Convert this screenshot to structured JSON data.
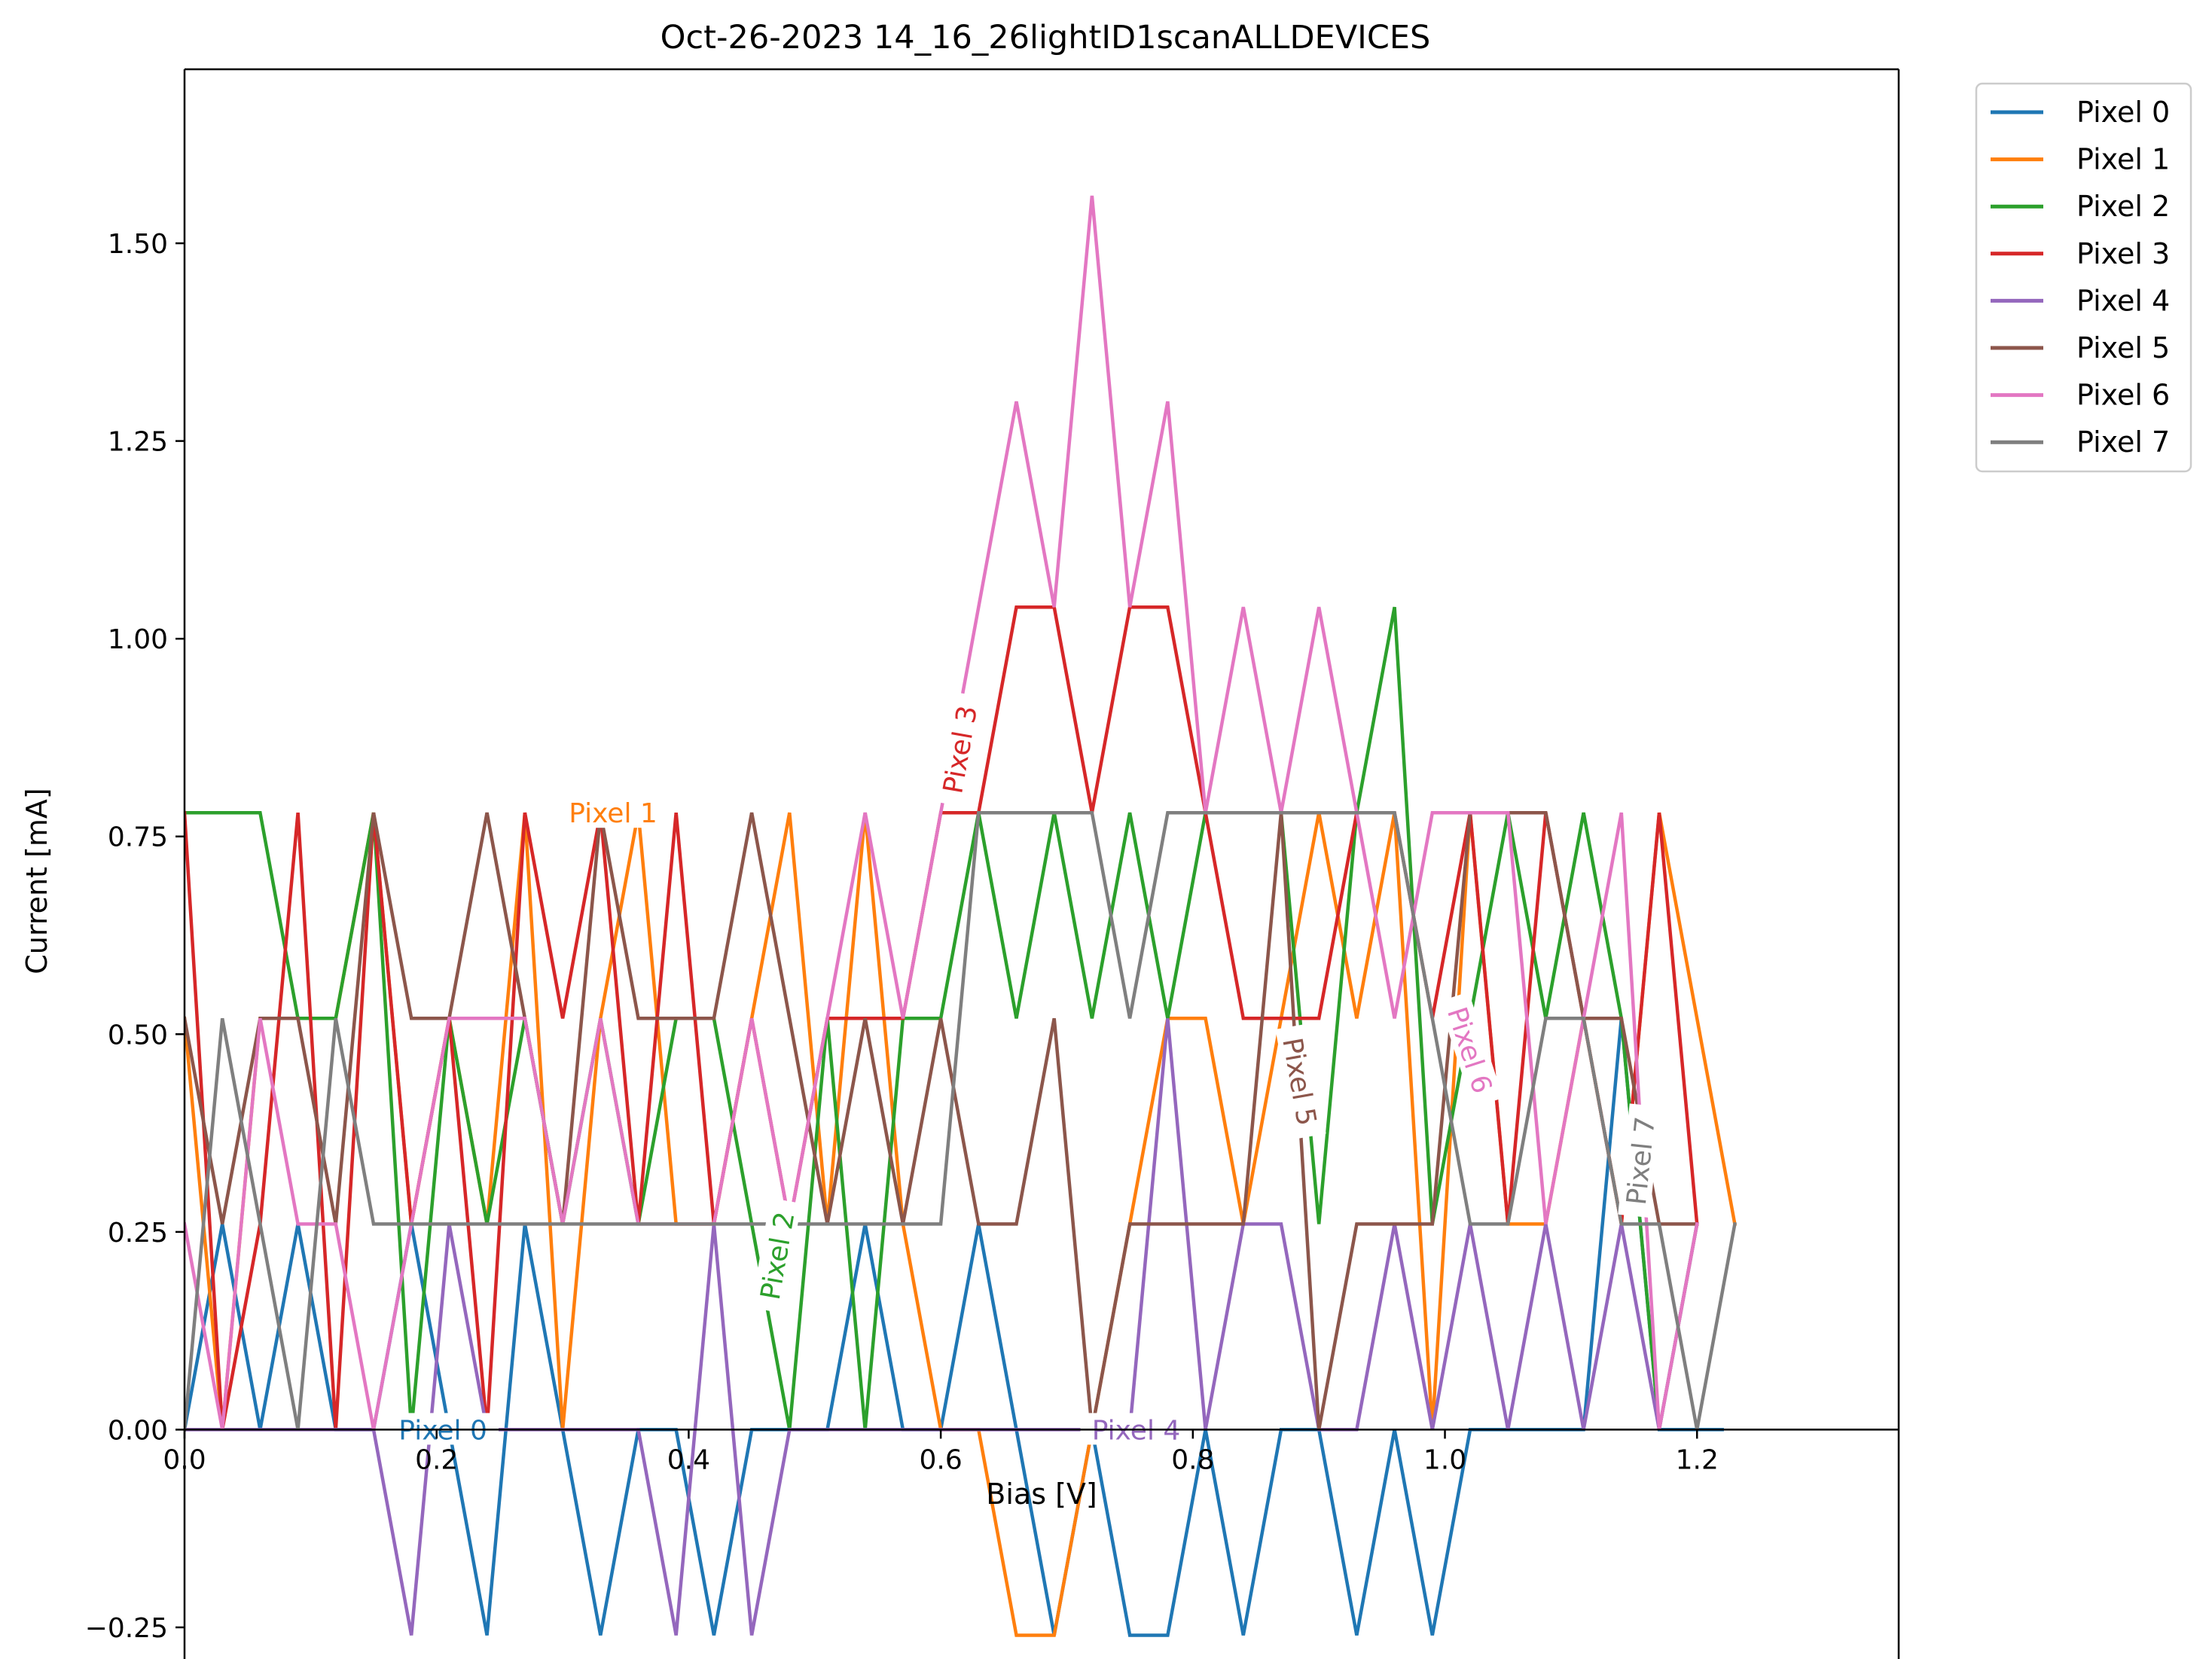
{
  "chart_data": {
    "type": "line",
    "title": "Oct-26-2023 14_16_26lightID1scanALLDEVICES",
    "xlabel": "Bias [V]",
    "ylabel": "Current [mA]",
    "xlim": [
      0.0,
      1.36
    ],
    "ylim": [
      -0.29,
      1.72
    ],
    "xticks": [
      0.0,
      0.2,
      0.4,
      0.6,
      0.8,
      1.0,
      1.2
    ],
    "xtick_labels": [
      "0.0",
      "0.2",
      "0.4",
      "0.6",
      "0.8",
      "1.0",
      "1.2"
    ],
    "yticks": [
      -0.25,
      0.0,
      0.25,
      0.5,
      0.75,
      1.0,
      1.25,
      1.5
    ],
    "ytick_labels": [
      "−0.25",
      "0.00",
      "0.25",
      "0.50",
      "0.75",
      "1.00",
      "1.25",
      "1.50"
    ],
    "grid": false,
    "legend_position": "outside top-right",
    "series": [
      {
        "name": "Pixel 0",
        "color": "#1f77b4",
        "label": "Pixel 0",
        "x": [
          0.0,
          0.03,
          0.06,
          0.09,
          0.12,
          0.15,
          0.18,
          0.21,
          0.24,
          0.27,
          0.3,
          0.33,
          0.36,
          0.39,
          0.42,
          0.45,
          0.48,
          0.51,
          0.54,
          0.57,
          0.6,
          0.63,
          0.66,
          0.69,
          0.72,
          0.75,
          0.78,
          0.81,
          0.84,
          0.87,
          0.9,
          0.93,
          0.96,
          0.99,
          1.02,
          1.05,
          1.08,
          1.11,
          1.14,
          1.17,
          1.2,
          1.22
        ],
        "y": [
          0.0,
          0.26,
          0.0,
          0.26,
          0.0,
          0.0,
          0.26,
          0.0,
          -0.26,
          0.26,
          0.0,
          -0.26,
          0.0,
          0.0,
          -0.26,
          0.0,
          0.0,
          0.0,
          0.26,
          0.0,
          0.0,
          0.26,
          0.0,
          -0.26,
          0.0,
          -0.26,
          -0.26,
          0.0,
          -0.26,
          0.0,
          0.0,
          -0.26,
          0.0,
          -0.26,
          0.0,
          0.0,
          0.0,
          0.0,
          0.52,
          0.0,
          0.0,
          0.0
        ]
      },
      {
        "name": "Pixel 1",
        "color": "#ff7f0e",
        "label": "Pixel 1",
        "x": [
          0.0,
          0.03,
          0.06,
          0.09,
          0.12,
          0.15,
          0.18,
          0.21,
          0.24,
          0.27,
          0.3,
          0.33,
          0.36,
          0.39,
          0.42,
          0.45,
          0.48,
          0.51,
          0.54,
          0.57,
          0.6,
          0.63,
          0.66,
          0.69,
          0.72,
          0.75,
          0.78,
          0.81,
          0.84,
          0.87,
          0.9,
          0.93,
          0.96,
          0.99,
          1.02,
          1.05,
          1.08,
          1.11,
          1.14,
          1.17,
          1.2,
          1.23
        ],
        "y": [
          0.52,
          0.0,
          0.52,
          0.52,
          0.52,
          0.78,
          0.26,
          0.52,
          0.26,
          0.78,
          0.0,
          0.52,
          0.78,
          0.26,
          0.26,
          0.52,
          0.78,
          0.26,
          0.78,
          0.26,
          0.0,
          0.0,
          -0.26,
          -0.26,
          0.0,
          0.26,
          0.52,
          0.52,
          0.26,
          0.52,
          0.78,
          0.52,
          0.78,
          0.0,
          0.78,
          0.26,
          0.26,
          0.52,
          0.26,
          0.78,
          0.52,
          0.26
        ]
      },
      {
        "name": "Pixel 2",
        "color": "#2ca02c",
        "label": "Pixel 2",
        "x": [
          0.0,
          0.03,
          0.06,
          0.09,
          0.12,
          0.15,
          0.18,
          0.21,
          0.24,
          0.27,
          0.3,
          0.33,
          0.36,
          0.39,
          0.42,
          0.45,
          0.48,
          0.51,
          0.54,
          0.57,
          0.6,
          0.63,
          0.66,
          0.69,
          0.72,
          0.75,
          0.78,
          0.81,
          0.84,
          0.87,
          0.9,
          0.93,
          0.96,
          0.99,
          1.02,
          1.05,
          1.08,
          1.11,
          1.14,
          1.17,
          1.2
        ],
        "y": [
          0.78,
          0.78,
          0.78,
          0.52,
          0.52,
          0.78,
          0.0,
          0.52,
          0.26,
          0.52,
          0.26,
          0.52,
          0.26,
          0.52,
          0.52,
          0.26,
          0.0,
          0.52,
          0.0,
          0.52,
          0.52,
          0.78,
          0.52,
          0.78,
          0.52,
          0.78,
          0.52,
          0.78,
          0.78,
          0.78,
          0.26,
          0.78,
          1.04,
          0.26,
          0.52,
          0.78,
          0.52,
          0.78,
          0.52,
          0.0,
          0.26
        ]
      },
      {
        "name": "Pixel 3",
        "color": "#d62728",
        "label": "Pixel 3",
        "x": [
          0.0,
          0.03,
          0.06,
          0.09,
          0.12,
          0.15,
          0.18,
          0.21,
          0.24,
          0.27,
          0.3,
          0.33,
          0.36,
          0.39,
          0.42,
          0.45,
          0.48,
          0.51,
          0.54,
          0.57,
          0.6,
          0.63,
          0.66,
          0.69,
          0.72,
          0.75,
          0.78,
          0.81,
          0.84,
          0.87,
          0.9,
          0.93,
          0.96,
          0.99,
          1.02,
          1.05,
          1.08,
          1.11,
          1.14,
          1.17,
          1.2
        ],
        "y": [
          0.78,
          0.0,
          0.26,
          0.78,
          0.0,
          0.78,
          0.26,
          0.52,
          0.0,
          0.78,
          0.52,
          0.78,
          0.26,
          0.78,
          0.26,
          0.52,
          0.26,
          0.52,
          0.52,
          0.52,
          0.78,
          0.78,
          1.04,
          1.04,
          0.78,
          1.04,
          1.04,
          0.78,
          0.52,
          0.52,
          0.52,
          0.78,
          0.78,
          0.52,
          0.78,
          0.26,
          0.78,
          0.52,
          0.26,
          0.78,
          0.26
        ]
      },
      {
        "name": "Pixel 4",
        "color": "#9467bd",
        "label": "Pixel 4",
        "x": [
          0.0,
          0.03,
          0.06,
          0.09,
          0.12,
          0.15,
          0.18,
          0.21,
          0.24,
          0.27,
          0.3,
          0.33,
          0.36,
          0.39,
          0.42,
          0.45,
          0.48,
          0.51,
          0.54,
          0.57,
          0.6,
          0.63,
          0.66,
          0.69,
          0.72,
          0.75,
          0.78,
          0.81,
          0.84,
          0.87,
          0.9,
          0.93,
          0.96,
          0.99,
          1.02,
          1.05,
          1.08,
          1.11,
          1.14,
          1.17,
          1.2
        ],
        "y": [
          0.0,
          0.0,
          0.0,
          0.0,
          0.0,
          0.0,
          -0.26,
          0.26,
          0.0,
          0.0,
          0.0,
          0.0,
          0.0,
          -0.26,
          0.26,
          -0.26,
          0.0,
          0.0,
          0.0,
          0.0,
          0.0,
          0.0,
          0.0,
          0.0,
          0.0,
          0.0,
          0.52,
          0.0,
          0.26,
          0.26,
          0.0,
          0.0,
          0.26,
          0.0,
          0.26,
          0.0,
          0.26,
          0.0,
          0.26,
          0.0,
          0.26
        ]
      },
      {
        "name": "Pixel 5",
        "color": "#8c564b",
        "label": "Pixel 5",
        "x": [
          0.0,
          0.03,
          0.06,
          0.09,
          0.12,
          0.15,
          0.18,
          0.21,
          0.24,
          0.27,
          0.3,
          0.33,
          0.36,
          0.39,
          0.42,
          0.45,
          0.48,
          0.51,
          0.54,
          0.57,
          0.6,
          0.63,
          0.66,
          0.69,
          0.72,
          0.75,
          0.78,
          0.81,
          0.84,
          0.87,
          0.9,
          0.93,
          0.96,
          0.99,
          1.02,
          1.05,
          1.08,
          1.11,
          1.14,
          1.17,
          1.2
        ],
        "y": [
          0.52,
          0.26,
          0.52,
          0.52,
          0.26,
          0.78,
          0.52,
          0.52,
          0.78,
          0.52,
          0.26,
          0.78,
          0.52,
          0.52,
          0.52,
          0.78,
          0.52,
          0.26,
          0.52,
          0.26,
          0.52,
          0.26,
          0.26,
          0.52,
          0.0,
          0.26,
          0.26,
          0.26,
          0.26,
          0.78,
          0.0,
          0.26,
          0.26,
          0.26,
          0.78,
          0.78,
          0.78,
          0.52,
          0.52,
          0.26,
          0.26
        ]
      },
      {
        "name": "Pixel 6",
        "color": "#e377c2",
        "label": "Pixel 6",
        "x": [
          0.0,
          0.03,
          0.06,
          0.09,
          0.12,
          0.15,
          0.18,
          0.21,
          0.24,
          0.27,
          0.3,
          0.33,
          0.36,
          0.39,
          0.42,
          0.45,
          0.48,
          0.51,
          0.54,
          0.57,
          0.6,
          0.63,
          0.66,
          0.69,
          0.72,
          0.75,
          0.78,
          0.81,
          0.84,
          0.87,
          0.9,
          0.93,
          0.96,
          0.99,
          1.02,
          1.05,
          1.08,
          1.11,
          1.14,
          1.17,
          1.2
        ],
        "y": [
          0.26,
          0.0,
          0.52,
          0.26,
          0.26,
          0.0,
          0.26,
          0.52,
          0.52,
          0.52,
          0.26,
          0.52,
          0.26,
          0.26,
          0.26,
          0.52,
          0.26,
          0.52,
          0.78,
          0.52,
          0.78,
          1.04,
          1.3,
          1.04,
          1.56,
          1.04,
          1.3,
          0.78,
          1.04,
          0.78,
          1.04,
          0.78,
          0.52,
          0.78,
          0.78,
          0.78,
          0.26,
          0.52,
          0.78,
          0.0,
          0.26
        ]
      },
      {
        "name": "Pixel 7",
        "color": "#7f7f7f",
        "label": "Pixel 7",
        "x": [
          0.0,
          0.03,
          0.06,
          0.09,
          0.12,
          0.15,
          0.18,
          0.21,
          0.24,
          0.27,
          0.3,
          0.33,
          0.36,
          0.39,
          0.42,
          0.45,
          0.48,
          0.51,
          0.54,
          0.57,
          0.6,
          0.63,
          0.66,
          0.69,
          0.72,
          0.75,
          0.78,
          0.81,
          0.84,
          0.87,
          0.9,
          0.93,
          0.96,
          0.99,
          1.02,
          1.05,
          1.08,
          1.11,
          1.14,
          1.17,
          1.2,
          1.23
        ],
        "y": [
          0.0,
          0.52,
          0.26,
          0.0,
          0.52,
          0.26,
          0.26,
          0.26,
          0.26,
          0.26,
          0.26,
          0.26,
          0.26,
          0.26,
          0.26,
          0.26,
          0.26,
          0.26,
          0.26,
          0.26,
          0.26,
          0.78,
          0.78,
          0.78,
          0.78,
          0.52,
          0.78,
          0.78,
          0.78,
          0.78,
          0.78,
          0.78,
          0.78,
          0.52,
          0.26,
          0.26,
          0.52,
          0.52,
          0.26,
          0.26,
          0.0,
          0.26
        ]
      }
    ]
  }
}
